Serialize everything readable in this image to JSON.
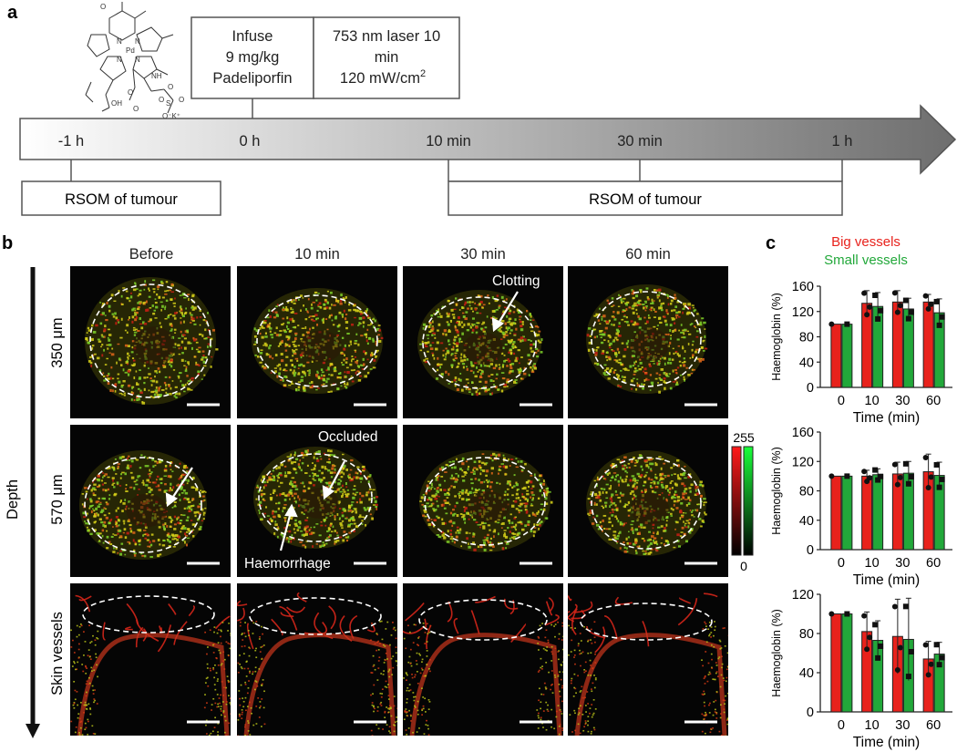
{
  "panel_a": {
    "letter": "a",
    "timeline_labels": [
      "-1 h",
      "0 h",
      "10 min",
      "30 min",
      "1 h"
    ],
    "infuse": {
      "line1": "Infuse",
      "line2": "9 mg/kg",
      "line3": "Padeliporfin"
    },
    "laser": {
      "line1": "753 nm laser 10",
      "line2": "min",
      "line3": "120 mW/cm",
      "sup": "2"
    },
    "rsom_left": "RSOM of tumour",
    "rsom_right": "RSOM of tumour",
    "structure_labels": [
      "N",
      "N",
      "N",
      "N",
      "Pd",
      "O",
      "O",
      "NH",
      "OH",
      "O",
      "O",
      "S",
      "O",
      "O",
      "O⁻K⁺"
    ]
  },
  "panel_b": {
    "letter": "b",
    "columns": [
      "Before",
      "10 min",
      "30 min",
      "60 min"
    ],
    "rows": [
      "350 μm",
      "570 μm",
      "Skin vessels"
    ],
    "depth_label": "Depth",
    "annotations": {
      "clotting": "Clotting",
      "occluded": "Occluded",
      "haemorrhage": "Haemorrhage"
    },
    "colorbar": {
      "max": "255",
      "min": "0"
    }
  },
  "panel_c": {
    "letter": "c",
    "legend": [
      {
        "name": "Big vessels",
        "color": "#e8221c"
      },
      {
        "name": "Small vessels",
        "color": "#22a83a"
      }
    ],
    "colors": {
      "big": "#e8221c",
      "small": "#22a83a"
    }
  },
  "chart_data": [
    {
      "type": "bar",
      "categories": [
        "0",
        "10",
        "30",
        "60"
      ],
      "xlabel": "Time (min)",
      "ylabel": "Haemoglobin (%)",
      "ylim": [
        0,
        160
      ],
      "yticks": [
        0,
        40,
        80,
        120,
        160
      ],
      "series": [
        {
          "name": "Big vessels",
          "values": [
            100,
            133,
            135,
            135
          ],
          "err": [
            0,
            20,
            18,
            12
          ]
        },
        {
          "name": "Small vessels",
          "values": [
            100,
            128,
            124,
            118
          ],
          "err": [
            0,
            22,
            17,
            22
          ]
        }
      ]
    },
    {
      "type": "bar",
      "categories": [
        "0",
        "10",
        "30",
        "60"
      ],
      "xlabel": "Time (min)",
      "ylabel": "Haemoglobin (%)",
      "ylim": [
        0,
        160
      ],
      "yticks": [
        0,
        40,
        80,
        120,
        160
      ],
      "series": [
        {
          "name": "Big vessels",
          "values": [
            100,
            100,
            103,
            106
          ],
          "err": [
            0,
            8,
            16,
            24
          ]
        },
        {
          "name": "Small vessels",
          "values": [
            100,
            102,
            104,
            101
          ],
          "err": [
            0,
            8,
            16,
            18
          ]
        }
      ]
    },
    {
      "type": "bar",
      "categories": [
        "0",
        "10",
        "30",
        "60"
      ],
      "xlabel": "Time (min)",
      "ylabel": "Haemoglobin (%)",
      "ylim": [
        0,
        120
      ],
      "yticks": [
        0,
        40,
        80,
        120
      ],
      "series": [
        {
          "name": "Big vessels",
          "values": [
            100,
            82,
            77,
            54
          ],
          "err": [
            0,
            20,
            38,
            18
          ]
        },
        {
          "name": "Small vessels",
          "values": [
            100,
            73,
            74,
            59
          ],
          "err": [
            0,
            20,
            42,
            12
          ]
        }
      ]
    }
  ]
}
